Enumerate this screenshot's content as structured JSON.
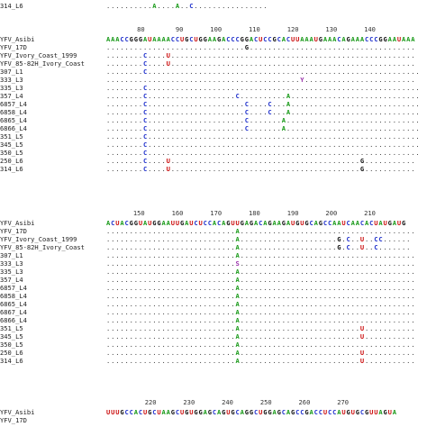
{
  "colors": {
    "A": "#1a9a1a",
    "C": "#2233cc",
    "G": "#111111",
    "U": "#cc1111",
    "Y": "#9933aa",
    "S": "#9933aa"
  },
  "blocks": [
    {
      "ruler": "",
      "rows": [
        {
          "label": "314_L6",
          "seq": "..........A....A..C................"
        }
      ]
    },
    {
      "ruler": "        80        90       100       110       120       130       140",
      "rows": [
        {
          "label": "YFV_Asibi",
          "seq": "AAACCGGGAUAAAACCUGCUGGAAGACCCGGACUCCGCACUUAAAUGAAACAGAAACCCGGAAUAAA"
        },
        {
          "label": "YFV_17D",
          "seq": "..............................G...................................."
        },
        {
          "label": "YFV_Ivory_Coast_1999",
          "seq": "........C....U....................................................."
        },
        {
          "label": "YFV_85-82H_Ivory_Coast",
          "seq": "........C....U....................................................."
        },
        {
          "label": "307_L1",
          "seq": "........C..........................................................."
        },
        {
          "label": "333_L3",
          "seq": "..........................................Y........................"
        },
        {
          "label": "335_L3",
          "seq": "........C..........................................................."
        },
        {
          "label": "357_L4",
          "seq": "........C...................C..........A............................"
        },
        {
          "label": "6857_L4",
          "seq": "........C.....................C....C...A............................"
        },
        {
          "label": "6858_L4",
          "seq": "........C.....................C....C...A............................"
        },
        {
          "label": "6865_L4",
          "seq": "........C.....................C.......A............................."
        },
        {
          "label": "6866_L4",
          "seq": "........C.....................C.......A............................."
        },
        {
          "label": "351_L5",
          "seq": "........C..........................................................."
        },
        {
          "label": "345_L5",
          "seq": "........C..........................................................."
        },
        {
          "label": "350_L5",
          "seq": "........C..........................................................."
        },
        {
          "label": "250_L6",
          "seq": "........C....U.........................................G..........."
        },
        {
          "label": "314_L6",
          "seq": "........C....U.........................................G..........."
        }
      ]
    },
    {
      "ruler": "       150       160       170       180       190       200       210",
      "rows": [
        {
          "label": "YFV_Asibi",
          "seq": "ACUACGGUAUGGAAUUGAUCUCCACAGUUGAGACAGAAGAUGUGCAGCCAAUCAACACUAUGAUG"
        },
        {
          "label": "YFV_17D",
          "seq": "............................A......................................"
        },
        {
          "label": "YFV_Ivory_Coast_1999",
          "seq": "............................A.....................G.C..U..CC......"
        },
        {
          "label": "YFV_85-82H_Ivory_Coast",
          "seq": "............................A.....................G.C..U..C......."
        },
        {
          "label": "307_L1",
          "seq": "............................A......................................"
        },
        {
          "label": "333_L3",
          "seq": "............................S......................................"
        },
        {
          "label": "335_L3",
          "seq": "............................A......................................"
        },
        {
          "label": "357_L4",
          "seq": "............................A......................................"
        },
        {
          "label": "6857_L4",
          "seq": "............................A......................................"
        },
        {
          "label": "6858_L4",
          "seq": "............................A......................................"
        },
        {
          "label": "6865_L4",
          "seq": "............................A......................................"
        },
        {
          "label": "6867_L4",
          "seq": "............................A......................................"
        },
        {
          "label": "6866_L4",
          "seq": "............................A......................................"
        },
        {
          "label": "351_L5",
          "seq": "............................A..........................U..........."
        },
        {
          "label": "345_L5",
          "seq": "............................A..........................U..........."
        },
        {
          "label": "350_L5",
          "seq": "............................A......................................"
        },
        {
          "label": "250_L6",
          "seq": "............................A..........................U..........."
        },
        {
          "label": "314_L6",
          "seq": "............................A..........................U..........."
        }
      ]
    },
    {
      "ruler": "          220       230       240       250       260       270",
      "rows": [
        {
          "label": "YFV_Asibi",
          "seq": "UUUGCCACUGCUAAGCUGUGGAGCAGUGCAGGCUGGAGCAGCCGACCUCCAUGUGCGUUAGUA"
        },
        {
          "label": "YFV_17D",
          "seq": ""
        }
      ]
    }
  ]
}
